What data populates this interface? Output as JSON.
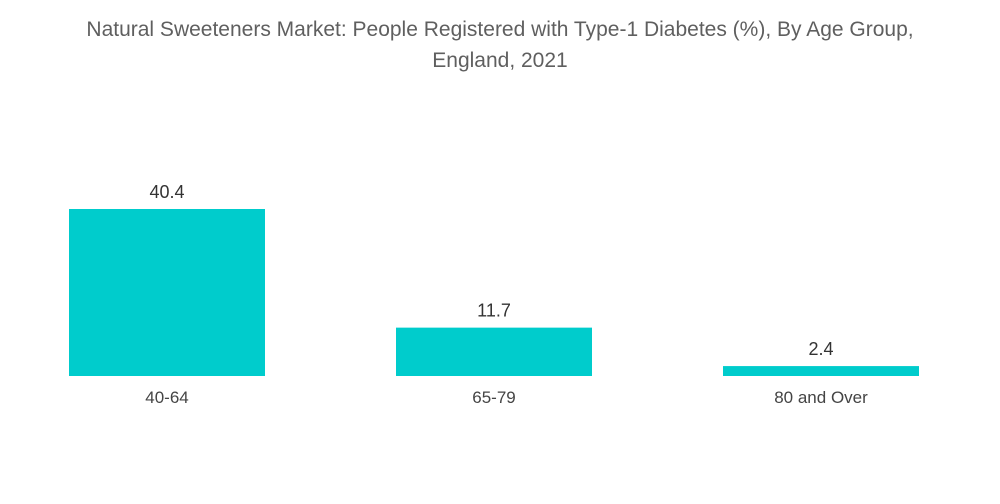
{
  "chart_data": {
    "type": "bar",
    "title_line1": "Natural Sweeteners Market: People Registered with Type-1 Diabetes (%), By Age Group,",
    "title_line2": "England, 2021",
    "xlabel": "",
    "ylabel": "",
    "categories": [
      "40-64",
      "65-79",
      "80 and Over"
    ],
    "values": [
      40.4,
      11.7,
      2.4
    ],
    "data_labels": [
      "40.4",
      "11.7",
      "2.4"
    ],
    "ylim": [
      0,
      40.4
    ],
    "grid": false,
    "legend": "none",
    "bar_color": "#00CCCC"
  }
}
